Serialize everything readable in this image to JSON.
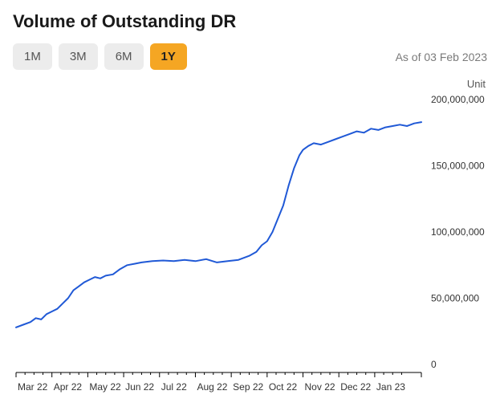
{
  "title": "Volume of Outstanding DR",
  "asof": "As of 03 Feb 2023",
  "unit_label": "Unit",
  "range_buttons": [
    {
      "label": "1M",
      "active": false
    },
    {
      "label": "3M",
      "active": false
    },
    {
      "label": "6M",
      "active": false
    },
    {
      "label": "1Y",
      "active": true
    }
  ],
  "chart": {
    "type": "line",
    "line_color": "#2059d6",
    "line_width": 2,
    "background_color": "#ffffff",
    "axis_color": "#000000",
    "tick_length": 6,
    "xlim": [
      0,
      11.3
    ],
    "ylim": [
      0,
      200000000
    ],
    "ytick_step": 50000000,
    "y_ticks": [
      {
        "v": 0,
        "label": "0"
      },
      {
        "v": 50000000,
        "label": "50,000,000"
      },
      {
        "v": 100000000,
        "label": "100,000,000"
      },
      {
        "v": 150000000,
        "label": "150,000,000"
      },
      {
        "v": 200000000,
        "label": "200,000,000"
      }
    ],
    "x_ticks": [
      {
        "v": 0,
        "label": "Mar 22"
      },
      {
        "v": 1,
        "label": "Apr 22"
      },
      {
        "v": 2,
        "label": "May 22"
      },
      {
        "v": 3,
        "label": "Jun 22"
      },
      {
        "v": 4,
        "label": "Jul 22"
      },
      {
        "v": 5,
        "label": "Aug 22"
      },
      {
        "v": 6,
        "label": "Sep 22"
      },
      {
        "v": 7,
        "label": "Oct 22"
      },
      {
        "v": 8,
        "label": "Nov 22"
      },
      {
        "v": 9,
        "label": "Dec 22"
      },
      {
        "v": 10,
        "label": "Jan 23"
      }
    ],
    "series": [
      {
        "x": 0.0,
        "y": 28000000
      },
      {
        "x": 0.2,
        "y": 30000000
      },
      {
        "x": 0.4,
        "y": 32000000
      },
      {
        "x": 0.55,
        "y": 35000000
      },
      {
        "x": 0.7,
        "y": 34000000
      },
      {
        "x": 0.85,
        "y": 38000000
      },
      {
        "x": 1.0,
        "y": 40000000
      },
      {
        "x": 1.15,
        "y": 42000000
      },
      {
        "x": 1.3,
        "y": 46000000
      },
      {
        "x": 1.45,
        "y": 50000000
      },
      {
        "x": 1.6,
        "y": 56000000
      },
      {
        "x": 1.75,
        "y": 59000000
      },
      {
        "x": 1.9,
        "y": 62000000
      },
      {
        "x": 2.05,
        "y": 64000000
      },
      {
        "x": 2.2,
        "y": 66000000
      },
      {
        "x": 2.35,
        "y": 65000000
      },
      {
        "x": 2.5,
        "y": 67000000
      },
      {
        "x": 2.7,
        "y": 68000000
      },
      {
        "x": 2.9,
        "y": 72000000
      },
      {
        "x": 3.1,
        "y": 75000000
      },
      {
        "x": 3.3,
        "y": 76000000
      },
      {
        "x": 3.5,
        "y": 77000000
      },
      {
        "x": 3.8,
        "y": 78000000
      },
      {
        "x": 4.1,
        "y": 78500000
      },
      {
        "x": 4.4,
        "y": 78000000
      },
      {
        "x": 4.7,
        "y": 79000000
      },
      {
        "x": 5.0,
        "y": 78000000
      },
      {
        "x": 5.3,
        "y": 79500000
      },
      {
        "x": 5.6,
        "y": 77000000
      },
      {
        "x": 5.9,
        "y": 78000000
      },
      {
        "x": 6.2,
        "y": 79000000
      },
      {
        "x": 6.5,
        "y": 82000000
      },
      {
        "x": 6.7,
        "y": 85000000
      },
      {
        "x": 6.85,
        "y": 90000000
      },
      {
        "x": 7.0,
        "y": 93000000
      },
      {
        "x": 7.15,
        "y": 100000000
      },
      {
        "x": 7.3,
        "y": 110000000
      },
      {
        "x": 7.45,
        "y": 120000000
      },
      {
        "x": 7.6,
        "y": 135000000
      },
      {
        "x": 7.75,
        "y": 148000000
      },
      {
        "x": 7.9,
        "y": 158000000
      },
      {
        "x": 8.0,
        "y": 162000000
      },
      {
        "x": 8.15,
        "y": 165000000
      },
      {
        "x": 8.3,
        "y": 167000000
      },
      {
        "x": 8.5,
        "y": 166000000
      },
      {
        "x": 8.7,
        "y": 168000000
      },
      {
        "x": 8.9,
        "y": 170000000
      },
      {
        "x": 9.1,
        "y": 172000000
      },
      {
        "x": 9.3,
        "y": 174000000
      },
      {
        "x": 9.5,
        "y": 176000000
      },
      {
        "x": 9.7,
        "y": 175000000
      },
      {
        "x": 9.9,
        "y": 178000000
      },
      {
        "x": 10.1,
        "y": 177000000
      },
      {
        "x": 10.3,
        "y": 179000000
      },
      {
        "x": 10.5,
        "y": 180000000
      },
      {
        "x": 10.7,
        "y": 181000000
      },
      {
        "x": 10.9,
        "y": 180000000
      },
      {
        "x": 11.1,
        "y": 182000000
      },
      {
        "x": 11.3,
        "y": 183000000
      }
    ],
    "label_fontsize": 12,
    "title_fontsize": 22
  },
  "colors": {
    "btn_inactive_bg": "#ececec",
    "btn_inactive_fg": "#555555",
    "btn_active_bg": "#f5a623",
    "btn_active_fg": "#222222",
    "asof_color": "#7a7a7a"
  }
}
